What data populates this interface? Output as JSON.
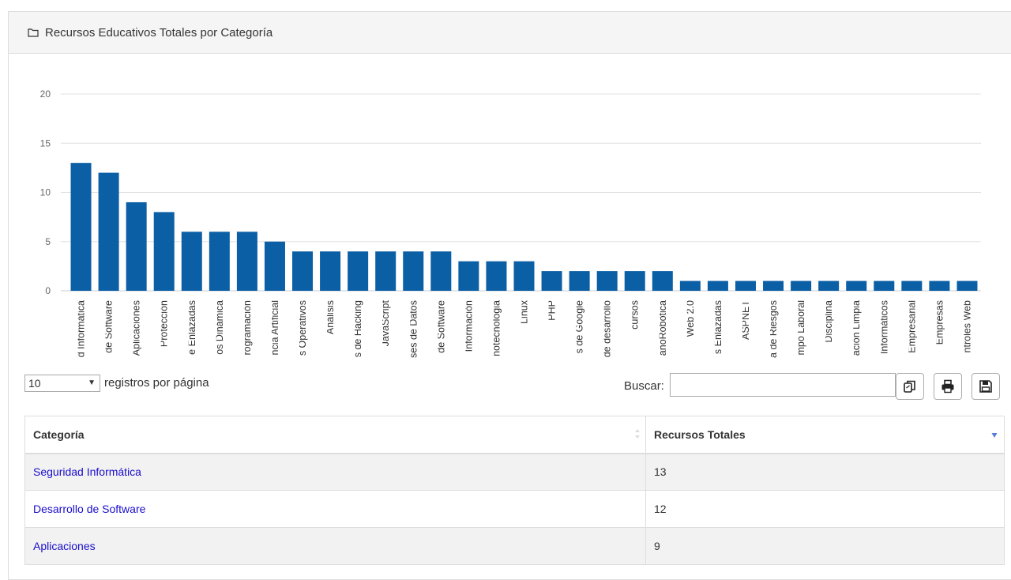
{
  "panel": {
    "title": "Recursos Educativos Totales por Categoría"
  },
  "chart_data": {
    "type": "bar",
    "title": "",
    "xlabel": "",
    "ylabel": "",
    "ylim": [
      0,
      20
    ],
    "yticks": [
      0,
      5,
      10,
      15,
      20
    ],
    "grid": true,
    "color": "#0b5fa5",
    "categories": [
      "d Informática",
      "de Software",
      "Aplicaciones",
      "Protección",
      "e Enlazadas",
      "os Dinámica",
      "rogramación",
      "ncia Artificial",
      "s Operativos",
      "Análisis",
      "s de Hacking",
      "JavaScript",
      "ses de Datos",
      "de Software",
      "Información",
      "notecnologia",
      "Linux",
      "PHP",
      "s de Google",
      "de desarrollo",
      "cursos",
      "anoRobotica",
      "Web 2.0",
      "s Enlazadas",
      "ASPNET",
      "a de Riesgos",
      "mpo Laboral",
      "Disciplina",
      "ación Limpia",
      "Informáticos",
      "Empresarial",
      "Empresas",
      "ntroles Web"
    ],
    "values": [
      13,
      12,
      9,
      8,
      6,
      6,
      6,
      5,
      4,
      4,
      4,
      4,
      4,
      4,
      3,
      3,
      3,
      2,
      2,
      2,
      2,
      2,
      1,
      1,
      1,
      1,
      1,
      1,
      1,
      1,
      1,
      1,
      1
    ]
  },
  "controls": {
    "page_length": "10",
    "page_length_label": "registros por página",
    "search_label": "Buscar:",
    "search_value": ""
  },
  "table": {
    "headers": [
      "Categoría",
      "Recursos Totales"
    ],
    "rows": [
      {
        "category": "Seguridad Informática",
        "total": "13"
      },
      {
        "category": "Desarrollo de Software",
        "total": "12"
      },
      {
        "category": "Aplicaciones",
        "total": "9"
      }
    ]
  },
  "icons": {
    "panel": "folder-icon",
    "copy": "copy-icon",
    "print": "print-icon",
    "save": "save-icon"
  }
}
